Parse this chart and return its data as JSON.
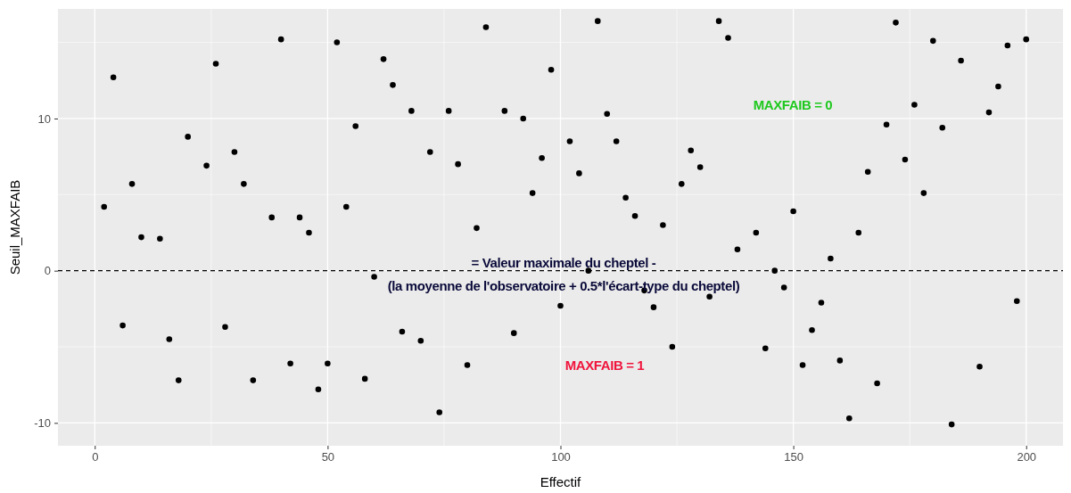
{
  "chart_data": {
    "type": "scatter",
    "xlabel": "Effectif",
    "ylabel": "Seuil_MAXFAIB",
    "x": [
      2,
      4,
      6,
      8,
      10,
      14,
      16,
      18,
      20,
      24,
      26,
      28,
      30,
      32,
      34,
      38,
      40,
      42,
      44,
      46,
      48,
      50,
      52,
      54,
      56,
      58,
      60,
      62,
      64,
      66,
      68,
      70,
      72,
      74,
      76,
      78,
      80,
      82,
      84,
      88,
      90,
      92,
      94,
      96,
      98,
      100,
      102,
      104,
      106,
      108,
      110,
      112,
      114,
      116,
      118,
      120,
      122,
      124,
      126,
      128,
      130,
      132,
      134,
      136,
      138,
      142,
      144,
      146,
      148,
      150,
      152,
      154,
      156,
      158,
      160,
      162,
      164,
      166,
      168,
      170,
      172,
      174,
      176,
      178,
      180,
      182,
      184,
      186,
      190,
      192,
      194,
      196,
      198,
      200
    ],
    "series": [
      {
        "color": "#000000",
        "values": [
          4.2,
          12.7,
          -3.6,
          5.7,
          2.2,
          2.1,
          -4.5,
          -7.2,
          8.8,
          6.9,
          13.6,
          -3.7,
          7.8,
          5.7,
          -7.2,
          3.5,
          15.2,
          -6.1,
          3.5,
          2.5,
          -7.8,
          -6.1,
          15.0,
          4.2,
          9.5,
          -7.1,
          -0.4,
          13.9,
          12.2,
          -4.0,
          10.5,
          -4.6,
          7.8,
          -9.3,
          10.5,
          7.0,
          -6.2,
          2.8,
          16.0,
          10.5,
          -4.1,
          10.0,
          5.1,
          7.4,
          13.2,
          -2.3,
          8.5,
          6.4,
          0.0,
          16.4,
          10.3,
          8.5,
          4.8,
          3.6,
          -1.3,
          -2.4,
          3.0,
          -5.0,
          5.7,
          7.9,
          6.8,
          -1.7,
          16.4,
          15.3,
          1.4,
          2.5,
          -5.1,
          0.0,
          -1.1,
          3.9,
          -6.2,
          -3.9,
          -2.1,
          0.8,
          -5.9,
          -9.7,
          2.5,
          6.5,
          -7.4,
          9.6,
          16.3,
          7.3,
          10.9,
          5.1,
          15.1,
          9.4,
          -10.1,
          13.8,
          -6.3,
          10.4,
          12.1,
          14.8,
          -2.0,
          15.2
        ]
      }
    ],
    "marker": "circle",
    "grid": true,
    "xlim": [
      -7.9,
      207.9
    ],
    "ylim": [
      -11.5,
      17.2
    ],
    "xticks": [
      0,
      50,
      100,
      150,
      200
    ],
    "yticks": [
      -10,
      0,
      10
    ],
    "ref_lines": [
      {
        "axis": "y",
        "value": 0,
        "color": "#000000",
        "line_style": "dashed"
      }
    ],
    "annotations": [
      "= Valeur maximale du cheptel -",
      "(la moyenne de l'observatoire + 0.5*l'écart-type du cheptel)",
      "MAXFAIB = 0",
      "MAXFAIB = 1"
    ]
  }
}
